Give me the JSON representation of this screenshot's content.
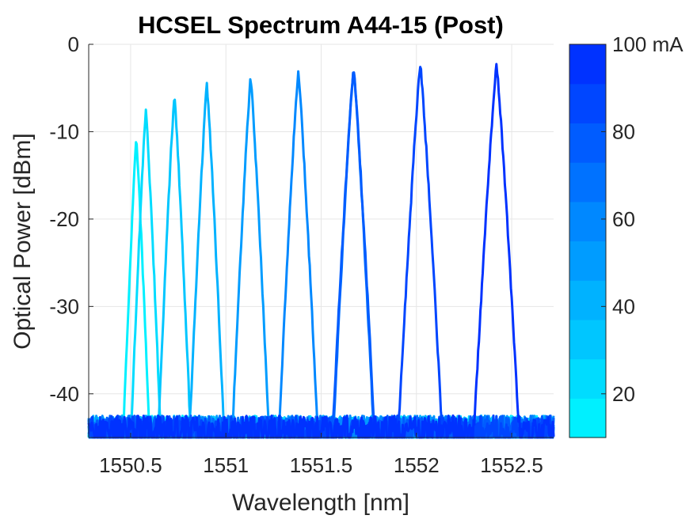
{
  "chart_data": {
    "type": "line",
    "title": "HCSEL Spectrum A44-15 (Post)",
    "xlabel": "Wavelength [nm]",
    "ylabel": "Optical Power [dBm]",
    "xlim": [
      1550.28,
      1552.72
    ],
    "ylim": [
      -45,
      0
    ],
    "xticks": [
      1550.5,
      1551,
      1551.5,
      1552,
      1552.5
    ],
    "xtick_labels": [
      "1550.5",
      "1551",
      "1551.5",
      "1552",
      "1552.5"
    ],
    "yticks": [
      0,
      -10,
      -20,
      -30,
      -40
    ],
    "ytick_labels": [
      "0",
      "-10",
      "-20",
      "-30",
      "-40"
    ],
    "grid": true,
    "noise_floor_dbm": -43,
    "colorbar": {
      "label_unit": "mA",
      "range": [
        10,
        100
      ],
      "ticks": [
        20,
        40,
        60,
        80,
        100
      ],
      "tick_labels": [
        "20",
        "40",
        "60",
        "80",
        "100 mA"
      ],
      "colors": [
        "#00f0ff",
        "#00dcff",
        "#00c6ff",
        "#00b2ff",
        "#009cff",
        "#0088ff",
        "#0072ff",
        "#005cff",
        "#0046ff",
        "#0032ff"
      ]
    },
    "series": [
      {
        "current_mA": 10,
        "peak_nm": 1550.53,
        "peak_dbm": -11,
        "color": "#00f0ff"
      },
      {
        "current_mA": 20,
        "peak_nm": 1550.58,
        "peak_dbm": -7.7,
        "color": "#00dcff"
      },
      {
        "current_mA": 30,
        "peak_nm": 1550.73,
        "peak_dbm": -5.8,
        "color": "#00c6ff"
      },
      {
        "current_mA": 40,
        "peak_nm": 1550.9,
        "peak_dbm": -4.7,
        "color": "#00b2ff"
      },
      {
        "current_mA": 50,
        "peak_nm": 1551.13,
        "peak_dbm": -3.8,
        "color": "#009cff"
      },
      {
        "current_mA": 60,
        "peak_nm": 1551.38,
        "peak_dbm": -3.0,
        "color": "#0088ff"
      },
      {
        "current_mA": 70,
        "peak_nm": 1551.67,
        "peak_dbm": -2.6,
        "color": "#0072ff"
      },
      {
        "current_mA": 80,
        "peak_nm": 1551.67,
        "peak_dbm": -2.6,
        "color": "#005cff"
      },
      {
        "current_mA": 90,
        "peak_nm": 1552.02,
        "peak_dbm": -2.3,
        "color": "#0046ff"
      },
      {
        "current_mA": 100,
        "peak_nm": 1552.42,
        "peak_dbm": -2.3,
        "color": "#0032ff"
      }
    ]
  }
}
